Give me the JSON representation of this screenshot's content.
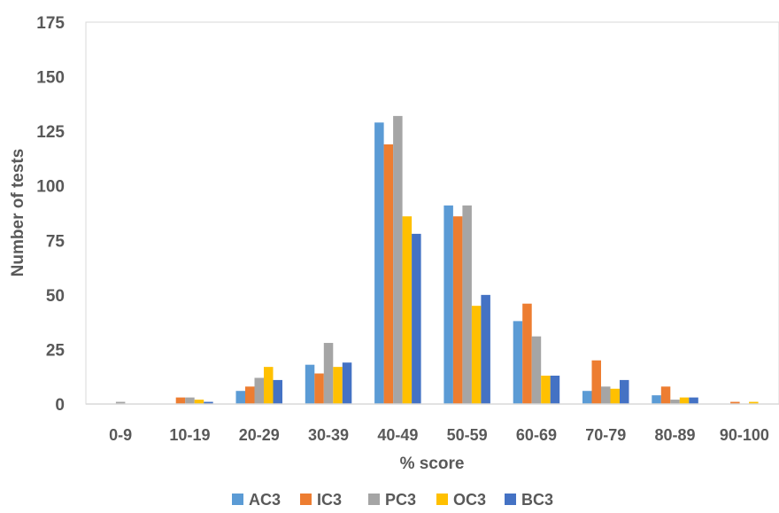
{
  "chart_data": {
    "type": "bar",
    "xlabel": "% score",
    "ylabel": "Number of tests",
    "ylim": [
      0,
      175
    ],
    "yticks": [
      "0",
      "25",
      "50",
      "75",
      "100",
      "125",
      "150",
      "175"
    ],
    "categories": [
      "0-9",
      "10-19",
      "20-29",
      "30-39",
      "40-49",
      "50-59",
      "60-69",
      "70-79",
      "80-89",
      "90-100"
    ],
    "legend_position": "bottom",
    "grid": false,
    "series": [
      {
        "name": "AC3",
        "color": "#5B9BD5",
        "values": [
          0,
          0,
          6,
          18,
          129,
          91,
          38,
          6,
          4,
          0
        ]
      },
      {
        "name": "IC3",
        "color": "#ED7D31",
        "values": [
          0,
          3,
          8,
          14,
          119,
          86,
          46,
          20,
          8,
          1
        ]
      },
      {
        "name": "PC3",
        "color": "#A5A5A5",
        "values": [
          1,
          3,
          12,
          28,
          132,
          91,
          31,
          8,
          2,
          0
        ]
      },
      {
        "name": "OC3",
        "color": "#FFC000",
        "values": [
          0,
          2,
          17,
          17,
          86,
          45,
          13,
          7,
          3,
          1
        ]
      },
      {
        "name": "BC3",
        "color": "#4472C4",
        "values": [
          0,
          1,
          11,
          19,
          78,
          50,
          13,
          11,
          3,
          0
        ]
      }
    ]
  }
}
